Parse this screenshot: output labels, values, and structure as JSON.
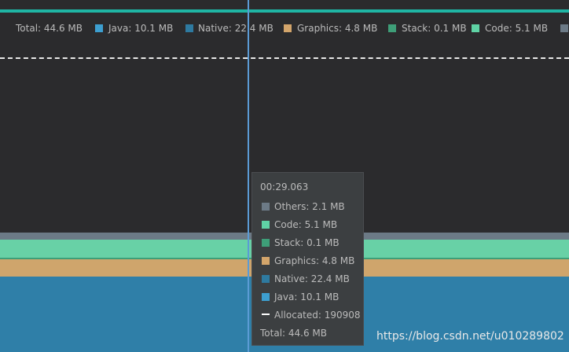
{
  "legend": {
    "total": "Total: 44.6 MB",
    "items": [
      "Java: 10.1 MB",
      "Native: 22.4 MB",
      "Graphics: 4.8 MB",
      "Stack: 0.1 MB",
      "Code: 5.1 MB"
    ]
  },
  "tooltip": {
    "time": "00:29.063",
    "rows": [
      "Others: 2.1 MB",
      "Code: 5.1 MB",
      "Stack: 0.1 MB",
      "Graphics: 4.8 MB",
      "Native: 22.4 MB",
      "Java: 10.1 MB",
      "Allocated: 190908"
    ],
    "total": "Total: 44.6 MB"
  },
  "watermark": "https://blog.csdn.net/u010289802"
}
